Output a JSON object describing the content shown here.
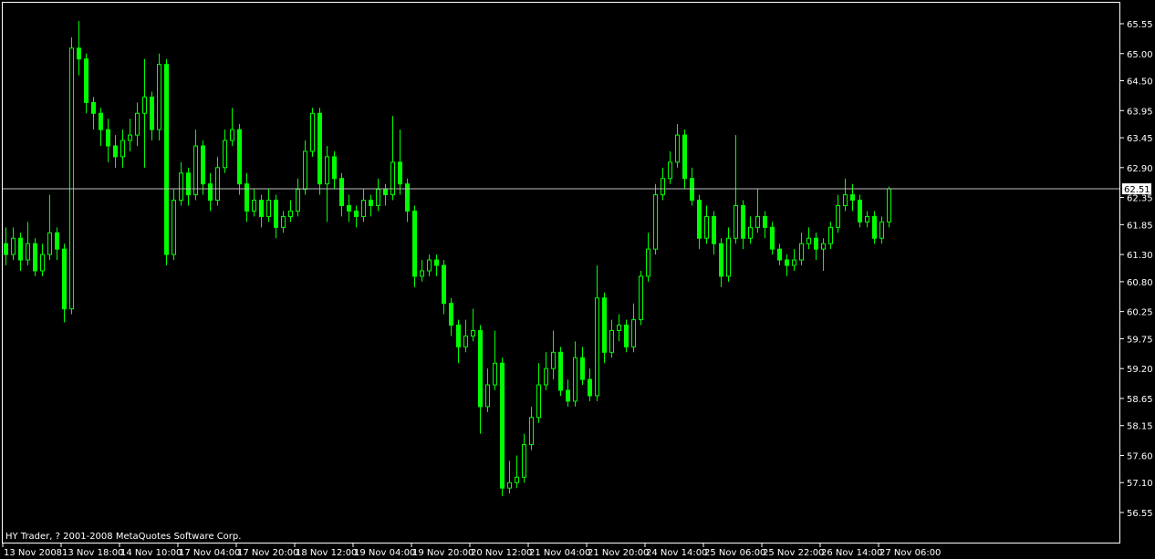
{
  "colors": {
    "background": "#000000",
    "foreground": "#ffffff",
    "candle": "#00ff00",
    "bid_line": "#c0c0c0"
  },
  "copyright": "HY Trader, ? 2001-2008 MetaQuotes Software Corp.",
  "chart_data": {
    "type": "candlestick",
    "price_axis": {
      "ticks": [
        "65.55",
        "65.00",
        "64.50",
        "63.95",
        "63.45",
        "62.90",
        "62.35",
        "61.85",
        "61.30",
        "60.80",
        "60.25",
        "59.75",
        "59.20",
        "58.65",
        "58.15",
        "57.60",
        "57.10",
        "56.55"
      ],
      "range": [
        56.55,
        65.55
      ]
    },
    "time_axis": {
      "ticks": [
        "13 Nov 2008",
        "13 Nov 18:00",
        "14 Nov 10:00",
        "17 Nov 04:00",
        "17 Nov 20:00",
        "18 Nov 12:00",
        "19 Nov 04:00",
        "19 Nov 20:00",
        "20 Nov 12:00",
        "21 Nov 04:00",
        "21 Nov 20:00",
        "24 Nov 14:00",
        "25 Nov 06:00",
        "25 Nov 22:00",
        "26 Nov 14:00",
        "27 Nov 06:00"
      ]
    },
    "current_price": "62.51",
    "grid": false,
    "ohlc": [
      [
        61.5,
        61.8,
        61.1,
        61.3
      ],
      [
        61.3,
        61.8,
        61.2,
        61.6
      ],
      [
        61.6,
        61.7,
        61.0,
        61.2
      ],
      [
        61.2,
        61.9,
        61.1,
        61.5
      ],
      [
        61.5,
        61.6,
        60.9,
        61.0
      ],
      [
        61.0,
        61.5,
        60.9,
        61.3
      ],
      [
        61.3,
        62.4,
        61.2,
        61.7
      ],
      [
        61.7,
        61.8,
        61.2,
        61.4
      ],
      [
        61.4,
        61.5,
        60.05,
        60.3
      ],
      [
        60.3,
        65.3,
        60.2,
        65.1
      ],
      [
        65.1,
        65.6,
        64.6,
        64.9
      ],
      [
        64.9,
        65.0,
        63.9,
        64.1
      ],
      [
        64.1,
        64.2,
        63.6,
        63.9
      ],
      [
        63.9,
        64.0,
        63.3,
        63.6
      ],
      [
        63.6,
        63.8,
        63.0,
        63.3
      ],
      [
        63.3,
        63.5,
        62.9,
        63.1
      ],
      [
        63.1,
        63.6,
        62.9,
        63.4
      ],
      [
        63.4,
        63.8,
        63.2,
        63.5
      ],
      [
        63.5,
        64.1,
        63.3,
        63.9
      ],
      [
        63.9,
        64.9,
        62.9,
        64.2
      ],
      [
        64.2,
        64.3,
        63.4,
        63.6
      ],
      [
        63.6,
        65.0,
        63.4,
        64.8
      ],
      [
        64.8,
        64.9,
        61.1,
        61.3
      ],
      [
        61.3,
        62.5,
        61.2,
        62.3
      ],
      [
        62.3,
        63.0,
        62.2,
        62.8
      ],
      [
        62.8,
        62.9,
        62.2,
        62.4
      ],
      [
        62.4,
        63.6,
        62.3,
        63.3
      ],
      [
        63.3,
        63.4,
        62.4,
        62.6
      ],
      [
        62.6,
        62.8,
        62.1,
        62.3
      ],
      [
        62.3,
        63.1,
        62.2,
        62.9
      ],
      [
        62.9,
        63.6,
        62.8,
        63.4
      ],
      [
        63.4,
        64.0,
        63.3,
        63.6
      ],
      [
        63.6,
        63.7,
        62.4,
        62.6
      ],
      [
        62.6,
        62.8,
        61.9,
        62.1
      ],
      [
        62.1,
        62.5,
        62.0,
        62.3
      ],
      [
        62.3,
        62.4,
        61.8,
        62.0
      ],
      [
        62.0,
        62.5,
        61.9,
        62.3
      ],
      [
        62.3,
        62.4,
        61.6,
        61.8
      ],
      [
        61.8,
        62.1,
        61.7,
        62.0
      ],
      [
        62.0,
        62.3,
        61.9,
        62.1
      ],
      [
        62.1,
        62.7,
        62.0,
        62.5
      ],
      [
        62.5,
        63.4,
        62.4,
        63.2
      ],
      [
        63.2,
        64.0,
        63.1,
        63.9
      ],
      [
        63.9,
        64.0,
        62.4,
        62.6
      ],
      [
        62.6,
        63.3,
        61.9,
        63.1
      ],
      [
        63.1,
        63.2,
        62.5,
        62.7
      ],
      [
        62.7,
        62.8,
        62.0,
        62.2
      ],
      [
        62.2,
        62.4,
        61.9,
        62.1
      ],
      [
        62.1,
        62.2,
        61.8,
        62.0
      ],
      [
        62.0,
        62.5,
        61.9,
        62.3
      ],
      [
        62.3,
        62.4,
        62.0,
        62.2
      ],
      [
        62.2,
        62.7,
        62.1,
        62.5
      ],
      [
        62.5,
        62.6,
        62.2,
        62.4
      ],
      [
        62.4,
        63.85,
        62.3,
        63.0
      ],
      [
        63.0,
        63.6,
        62.4,
        62.6
      ],
      [
        62.6,
        62.7,
        61.9,
        62.1
      ],
      [
        62.1,
        62.2,
        60.7,
        60.9
      ],
      [
        60.9,
        61.2,
        60.8,
        61.0
      ],
      [
        61.0,
        61.3,
        60.9,
        61.2
      ],
      [
        61.2,
        61.3,
        60.9,
        61.1
      ],
      [
        61.1,
        61.2,
        60.2,
        60.4
      ],
      [
        60.4,
        60.5,
        59.8,
        60.0
      ],
      [
        60.0,
        60.1,
        59.3,
        59.6
      ],
      [
        59.6,
        60.1,
        59.5,
        59.8
      ],
      [
        59.8,
        60.3,
        59.7,
        59.9
      ],
      [
        59.9,
        60.0,
        58.0,
        58.5
      ],
      [
        58.5,
        59.2,
        58.4,
        58.9
      ],
      [
        58.9,
        59.9,
        58.8,
        59.3
      ],
      [
        59.3,
        59.4,
        56.85,
        57.0
      ],
      [
        57.0,
        57.5,
        56.9,
        57.1
      ],
      [
        57.1,
        57.6,
        57.0,
        57.2
      ],
      [
        57.2,
        58.0,
        57.1,
        57.8
      ],
      [
        57.8,
        58.5,
        57.7,
        58.3
      ],
      [
        58.3,
        59.3,
        58.2,
        58.9
      ],
      [
        58.9,
        59.5,
        58.8,
        59.2
      ],
      [
        59.2,
        59.9,
        59.0,
        59.5
      ],
      [
        59.5,
        59.6,
        58.7,
        58.8
      ],
      [
        58.8,
        59.0,
        58.5,
        58.6
      ],
      [
        58.6,
        59.7,
        58.5,
        59.4
      ],
      [
        59.4,
        59.6,
        58.9,
        59.0
      ],
      [
        59.0,
        59.2,
        58.6,
        58.7
      ],
      [
        58.7,
        61.1,
        58.6,
        60.5
      ],
      [
        60.5,
        60.6,
        59.3,
        59.5
      ],
      [
        59.5,
        60.1,
        59.4,
        59.9
      ],
      [
        59.9,
        60.2,
        59.7,
        60.0
      ],
      [
        60.0,
        60.1,
        59.5,
        59.6
      ],
      [
        59.6,
        60.4,
        59.5,
        60.1
      ],
      [
        60.1,
        61.0,
        60.0,
        60.9
      ],
      [
        60.9,
        61.7,
        60.8,
        61.4
      ],
      [
        61.4,
        62.6,
        61.3,
        62.4
      ],
      [
        62.4,
        62.9,
        62.3,
        62.7
      ],
      [
        62.7,
        63.2,
        62.6,
        63.0
      ],
      [
        63.0,
        63.7,
        62.9,
        63.5
      ],
      [
        63.5,
        63.6,
        62.5,
        62.7
      ],
      [
        62.7,
        62.9,
        62.2,
        62.3
      ],
      [
        62.3,
        62.4,
        61.4,
        61.6
      ],
      [
        61.6,
        62.2,
        61.5,
        62.0
      ],
      [
        62.0,
        62.1,
        61.3,
        61.5
      ],
      [
        61.5,
        61.6,
        60.7,
        60.9
      ],
      [
        60.9,
        61.8,
        60.8,
        61.6
      ],
      [
        61.6,
        63.5,
        61.5,
        62.2
      ],
      [
        62.2,
        62.3,
        61.4,
        61.6
      ],
      [
        61.6,
        62.0,
        61.5,
        61.8
      ],
      [
        61.8,
        62.5,
        61.7,
        62.0
      ],
      [
        62.0,
        62.1,
        61.6,
        61.8
      ],
      [
        61.8,
        61.9,
        61.3,
        61.4
      ],
      [
        61.4,
        61.5,
        61.1,
        61.2
      ],
      [
        61.2,
        61.3,
        60.9,
        61.1
      ],
      [
        61.1,
        61.4,
        61.0,
        61.2
      ],
      [
        61.2,
        61.7,
        61.1,
        61.5
      ],
      [
        61.5,
        61.8,
        61.4,
        61.6
      ],
      [
        61.6,
        61.7,
        61.2,
        61.4
      ],
      [
        61.4,
        61.6,
        61.0,
        61.5
      ],
      [
        61.5,
        61.9,
        61.4,
        61.8
      ],
      [
        61.8,
        62.4,
        61.7,
        62.2
      ],
      [
        62.2,
        62.7,
        62.1,
        62.4
      ],
      [
        62.4,
        62.6,
        62.1,
        62.3
      ],
      [
        62.3,
        62.4,
        61.8,
        61.9
      ],
      [
        61.9,
        62.1,
        61.8,
        62.0
      ],
      [
        62.0,
        62.1,
        61.5,
        61.6
      ],
      [
        61.6,
        62.0,
        61.5,
        61.9
      ],
      [
        61.9,
        62.55,
        61.8,
        62.51
      ]
    ]
  }
}
